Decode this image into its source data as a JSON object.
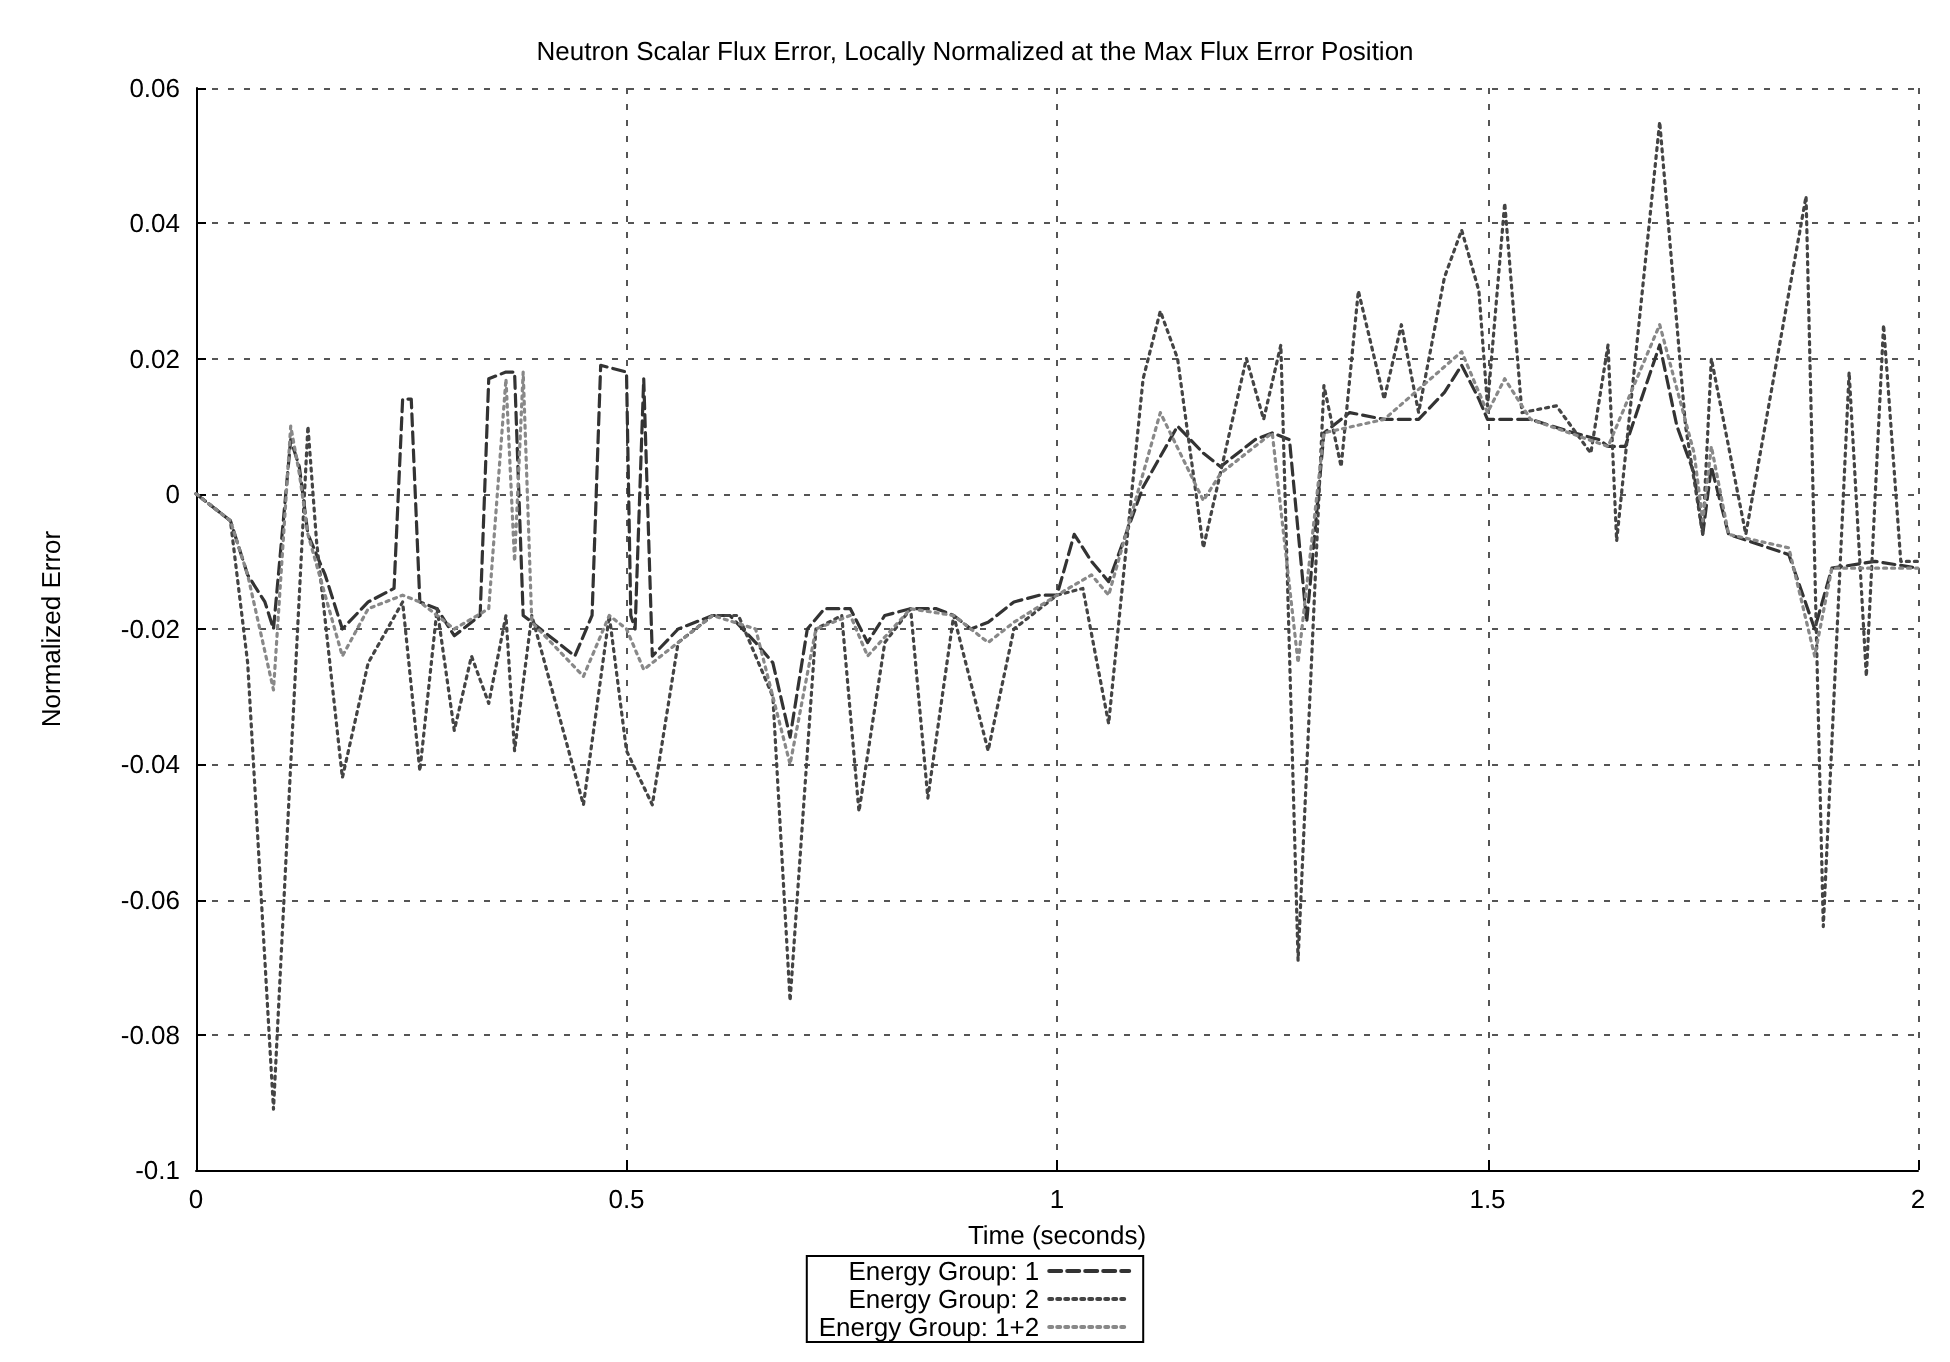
{
  "chart_data": {
    "type": "line",
    "title": "Neutron Scalar Flux Error, Locally Normalized at the Max Flux Error Position",
    "xlabel": "Time (seconds)",
    "ylabel": "Normalized Error",
    "xlim": [
      0,
      2
    ],
    "xticks": [
      0,
      0.5,
      1,
      1.5,
      2
    ],
    "ylim": [
      -0.1,
      0.06
    ],
    "yticks": [
      -0.1,
      -0.08,
      -0.06,
      -0.04,
      -0.02,
      0,
      0.02,
      0.04,
      0.06
    ],
    "grid": true,
    "legend": "bottom",
    "marker": "none",
    "series": [
      {
        "name": "Energy Group: 1",
        "color": "#333333",
        "line_style": "dashed",
        "x": [
          0,
          0.02,
          0.04,
          0.06,
          0.08,
          0.09,
          0.11,
          0.12,
          0.13,
          0.15,
          0.17,
          0.2,
          0.23,
          0.24,
          0.25,
          0.26,
          0.28,
          0.3,
          0.33,
          0.34,
          0.36,
          0.37,
          0.38,
          0.4,
          0.42,
          0.44,
          0.46,
          0.47,
          0.5,
          0.505,
          0.51,
          0.52,
          0.53,
          0.56,
          0.6,
          0.62,
          0.65,
          0.67,
          0.69,
          0.71,
          0.73,
          0.76,
          0.78,
          0.8,
          0.83,
          0.86,
          0.88,
          0.9,
          0.92,
          0.95,
          0.98,
          1.0,
          1.02,
          1.04,
          1.06,
          1.1,
          1.14,
          1.17,
          1.19,
          1.23,
          1.25,
          1.27,
          1.29,
          1.31,
          1.34,
          1.38,
          1.42,
          1.45,
          1.47,
          1.49,
          1.5,
          1.52,
          1.55,
          1.6,
          1.63,
          1.64,
          1.66,
          1.7,
          1.72,
          1.74,
          1.75,
          1.76,
          1.78,
          1.85,
          1.88,
          1.9,
          1.95,
          2.0
        ],
        "values": [
          0,
          -0.002,
          -0.004,
          -0.012,
          -0.016,
          -0.02,
          0.008,
          0.004,
          -0.006,
          -0.012,
          -0.02,
          -0.016,
          -0.014,
          0.014,
          0.014,
          -0.016,
          -0.017,
          -0.021,
          -0.018,
          0.017,
          0.018,
          0.018,
          -0.018,
          -0.02,
          -0.022,
          -0.024,
          -0.018,
          0.019,
          0.018,
          -0.018,
          -0.02,
          0.017,
          -0.024,
          -0.02,
          -0.018,
          -0.018,
          -0.022,
          -0.025,
          -0.036,
          -0.02,
          -0.017,
          -0.017,
          -0.022,
          -0.018,
          -0.017,
          -0.017,
          -0.018,
          -0.02,
          -0.019,
          -0.016,
          -0.015,
          -0.015,
          -0.006,
          -0.01,
          -0.013,
          0.001,
          0.01,
          0.006,
          0.004,
          0.008,
          0.009,
          0.008,
          -0.019,
          0.009,
          0.012,
          0.011,
          0.011,
          0.015,
          0.019,
          0.014,
          0.011,
          0.011,
          0.011,
          0.009,
          0.008,
          0.007,
          0.007,
          0.022,
          0.01,
          0.003,
          -0.006,
          0.004,
          -0.006,
          -0.009,
          -0.02,
          -0.011,
          -0.01,
          -0.011
        ]
      },
      {
        "name": "Energy Group: 2",
        "color": "#444444",
        "line_style": "dotted",
        "x": [
          0,
          0.04,
          0.06,
          0.09,
          0.11,
          0.13,
          0.14,
          0.17,
          0.2,
          0.24,
          0.26,
          0.28,
          0.3,
          0.32,
          0.34,
          0.36,
          0.37,
          0.39,
          0.45,
          0.48,
          0.5,
          0.53,
          0.56,
          0.6,
          0.63,
          0.67,
          0.69,
          0.72,
          0.75,
          0.77,
          0.8,
          0.83,
          0.85,
          0.88,
          0.92,
          0.95,
          1.0,
          1.03,
          1.06,
          1.1,
          1.12,
          1.14,
          1.17,
          1.22,
          1.24,
          1.26,
          1.28,
          1.31,
          1.33,
          1.35,
          1.38,
          1.4,
          1.42,
          1.45,
          1.47,
          1.49,
          1.5,
          1.52,
          1.54,
          1.58,
          1.62,
          1.64,
          1.65,
          1.7,
          1.73,
          1.75,
          1.76,
          1.8,
          1.87,
          1.89,
          1.92,
          1.94,
          1.96,
          1.98,
          2.0
        ],
        "values": [
          0,
          -0.004,
          -0.025,
          -0.091,
          -0.04,
          0.01,
          -0.007,
          -0.042,
          -0.025,
          -0.016,
          -0.041,
          -0.017,
          -0.035,
          -0.024,
          -0.031,
          -0.018,
          -0.038,
          -0.018,
          -0.046,
          -0.018,
          -0.038,
          -0.046,
          -0.022,
          -0.018,
          -0.018,
          -0.03,
          -0.075,
          -0.02,
          -0.018,
          -0.047,
          -0.022,
          -0.017,
          -0.045,
          -0.018,
          -0.038,
          -0.02,
          -0.015,
          -0.014,
          -0.034,
          0.017,
          0.027,
          0.02,
          -0.008,
          0.02,
          0.011,
          0.022,
          -0.069,
          0.016,
          0.004,
          0.03,
          0.014,
          0.025,
          0.012,
          0.032,
          0.039,
          0.03,
          0.013,
          0.043,
          0.012,
          0.013,
          0.006,
          0.022,
          -0.007,
          0.055,
          0.01,
          -0.006,
          0.02,
          -0.006,
          0.044,
          -0.064,
          0.018,
          -0.027,
          0.025,
          -0.01,
          -0.01
        ]
      },
      {
        "name": "Energy Group: 1+2",
        "color": "#888888",
        "line_style": "dotted",
        "x": [
          0,
          0.04,
          0.06,
          0.09,
          0.11,
          0.12,
          0.13,
          0.17,
          0.2,
          0.24,
          0.26,
          0.3,
          0.34,
          0.36,
          0.37,
          0.38,
          0.39,
          0.45,
          0.48,
          0.5,
          0.52,
          0.56,
          0.6,
          0.65,
          0.69,
          0.72,
          0.76,
          0.78,
          0.83,
          0.88,
          0.92,
          0.95,
          1.0,
          1.04,
          1.06,
          1.12,
          1.17,
          1.19,
          1.25,
          1.28,
          1.31,
          1.38,
          1.47,
          1.5,
          1.52,
          1.55,
          1.64,
          1.7,
          1.74,
          1.75,
          1.76,
          1.78,
          1.85,
          1.88,
          1.9,
          2.0
        ],
        "values": [
          0,
          -0.004,
          -0.012,
          -0.029,
          0.01,
          0.003,
          -0.006,
          -0.024,
          -0.017,
          -0.015,
          -0.016,
          -0.02,
          -0.017,
          0.017,
          -0.01,
          0.018,
          -0.019,
          -0.027,
          -0.018,
          -0.02,
          -0.026,
          -0.022,
          -0.018,
          -0.02,
          -0.04,
          -0.02,
          -0.018,
          -0.024,
          -0.017,
          -0.018,
          -0.022,
          -0.019,
          -0.015,
          -0.012,
          -0.015,
          0.012,
          -0.001,
          0.003,
          0.009,
          -0.025,
          0.009,
          0.011,
          0.021,
          0.012,
          0.017,
          0.011,
          0.007,
          0.025,
          0.006,
          -0.004,
          0.007,
          -0.006,
          -0.008,
          -0.024,
          -0.011,
          -0.011
        ]
      }
    ]
  }
}
